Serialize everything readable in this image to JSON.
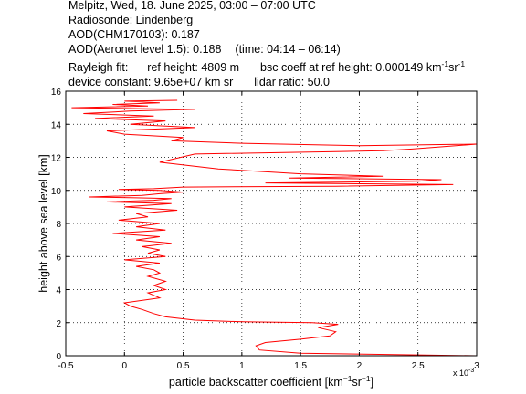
{
  "header": {
    "line1": "Melpitz, Wed, 18. June 2025, 03:00 – 07:00 UTC",
    "line2": "Radiosonde: Lindenberg",
    "line3": "AOD(CHM170103): 0.187",
    "line4a": "AOD(Aeronet level 1.5): 0.188",
    "line4b": "(time: 04:14 – 06:14)",
    "rayleigh_label": "Rayleigh fit:",
    "ref_height": "ref height: 4809 m",
    "bsc_coeff_prefix": "bsc coeff at ref height: 0.000149 km",
    "bsc_exp1": "-1",
    "bsc_mid": "sr",
    "bsc_exp2": "-1",
    "device_constant": "device constant: 9.65e+07 km sr",
    "lidar_ratio": "lidar ratio: 50.0"
  },
  "chart_data": {
    "type": "line",
    "xlabel_prefix": "particle backscatter coefficient [km",
    "xlabel_exp1": "−1",
    "xlabel_mid": "sr",
    "xlabel_exp2": "−1",
    "xlabel_suffix": "]",
    "ylabel": "height above sea level [km]",
    "xlim": [
      -0.5,
      3
    ],
    "ylim": [
      0,
      16
    ],
    "x_ticks": [
      -0.5,
      0,
      0.5,
      1,
      1.5,
      2,
      2.5,
      3
    ],
    "x_tick_labels": [
      "-0.5",
      "0",
      "0.5",
      "1",
      "1.5",
      "2",
      "2.5",
      "3"
    ],
    "y_ticks": [
      0,
      2,
      4,
      6,
      8,
      10,
      12,
      14,
      16
    ],
    "y_tick_labels": [
      "0",
      "2",
      "4",
      "6",
      "8",
      "10",
      "12",
      "14",
      "16"
    ],
    "x_multiplier": "x 10",
    "x_multiplier_exp": "-3",
    "grid": true,
    "series_color": "#ff0000",
    "series": [
      {
        "x": [
          3.0,
          1.5,
          1.15,
          1.12,
          1.2,
          1.5,
          1.75,
          1.8,
          1.65,
          1.82,
          1.6,
          1.0,
          0.6,
          0.35,
          0.25,
          0.15,
          0.05,
          0.0,
          0.3,
          0.2,
          0.35,
          0.25,
          0.35,
          0.2,
          0.3,
          0.25,
          0.1,
          0.3,
          0.0,
          0.35,
          0.2,
          0.3,
          0.15,
          0.4,
          0.1,
          0.3,
          -0.1,
          0.35,
          0.1,
          0.3,
          -0.05,
          0.2,
          0.1,
          0.45,
          0.0,
          0.4,
          -0.15,
          0.25,
          0.4,
          0.1,
          -0.3,
          0.15,
          0.3,
          0.5,
          0.3,
          -0.05,
          0.25,
          0.5,
          1.8,
          2.8,
          1.2,
          2.5,
          2.7,
          1.4,
          2.2,
          1.5,
          0.8,
          0.3,
          0.6,
          2.2,
          2.45,
          3.0,
          2.0,
          1.0,
          0.4,
          0.5,
          0.0,
          -0.15,
          0.6,
          0.05,
          0.35,
          -0.25,
          0.25,
          -0.35,
          0.05,
          0.6,
          -0.45,
          0.2,
          -0.1,
          0.3,
          0.0,
          0.45
        ],
        "y": [
          0.0,
          0.15,
          0.35,
          0.6,
          0.8,
          1.0,
          1.2,
          1.45,
          1.7,
          1.9,
          2.0,
          2.05,
          2.15,
          2.35,
          2.55,
          2.8,
          3.0,
          3.2,
          3.5,
          3.8,
          4.0,
          4.25,
          4.5,
          4.8,
          5.0,
          5.2,
          5.4,
          5.6,
          5.8,
          6.0,
          6.2,
          6.4,
          6.6,
          6.8,
          7.0,
          7.2,
          7.4,
          7.6,
          7.8,
          8.0,
          8.2,
          8.4,
          8.6,
          8.8,
          9.0,
          9.2,
          9.3,
          9.4,
          9.5,
          9.55,
          9.6,
          9.7,
          9.8,
          9.9,
          10.0,
          10.05,
          10.1,
          10.2,
          10.25,
          10.35,
          10.45,
          10.55,
          10.65,
          10.75,
          10.85,
          11.0,
          11.3,
          11.7,
          12.2,
          12.4,
          12.5,
          12.8,
          12.7,
          12.85,
          13.0,
          13.2,
          13.4,
          13.6,
          13.8,
          14.0,
          14.2,
          14.35,
          14.5,
          14.65,
          14.8,
          14.9,
          15.0,
          15.1,
          15.2,
          15.3,
          15.4,
          15.45
        ]
      }
    ]
  }
}
